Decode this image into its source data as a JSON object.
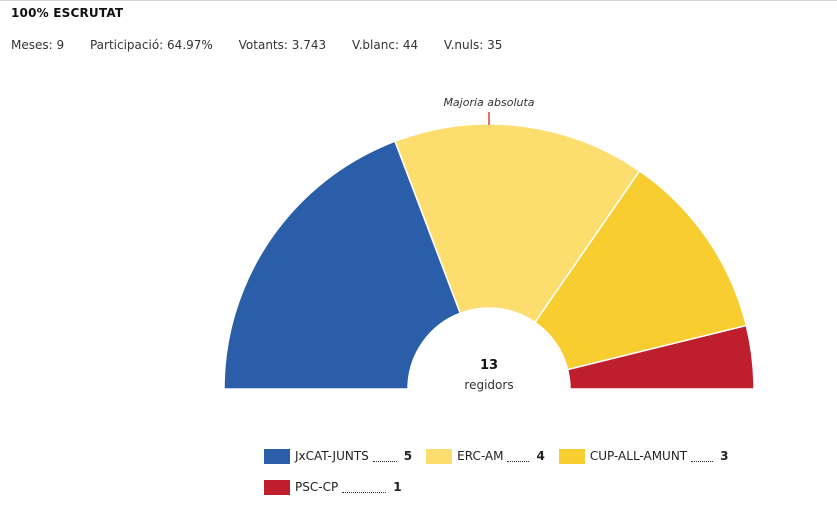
{
  "header": {
    "title": "100% ESCRUTAT",
    "stats": [
      {
        "label": "Meses:",
        "value": "9"
      },
      {
        "label": "Participació:",
        "value": "64.97%"
      },
      {
        "label": "Votants:",
        "value": "3.743"
      },
      {
        "label": "V.blanc:",
        "value": "44"
      },
      {
        "label": "V.nuls:",
        "value": "35"
      }
    ]
  },
  "chart_data": {
    "type": "pie",
    "variant": "half-donut",
    "total_label": "13",
    "total_unit": "regidors",
    "majority_label": "Majoria absoluta",
    "series": [
      {
        "name": "JxCAT-JUNTS",
        "value": 5,
        "color": "#2b5ea8"
      },
      {
        "name": "ERC-AM",
        "value": 4,
        "color": "#fcdd6d"
      },
      {
        "name": "CUP-ALL-AMUNT",
        "value": 3,
        "color": "#f8cd30"
      },
      {
        "name": "PSC-CP",
        "value": 1,
        "color": "#bf1e2c"
      }
    ]
  }
}
